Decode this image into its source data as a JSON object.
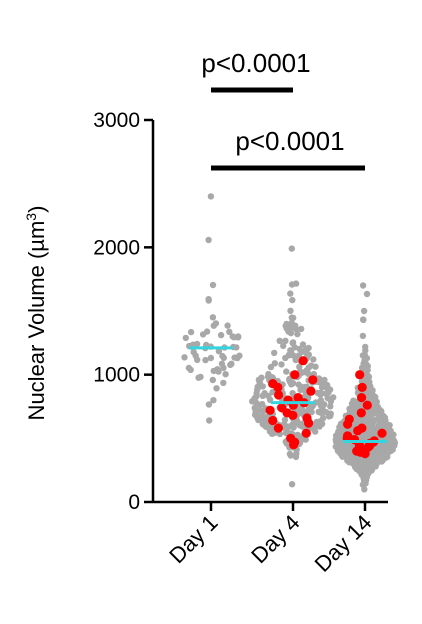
{
  "chart_data": {
    "type": "scatter",
    "subtype": "swarm-dot-plot",
    "title": "",
    "xlabel": "",
    "ylabel": "Nuclear Volume (µm",
    "ylabel_superscript": "3",
    "ylabel_close": ")",
    "ylim": [
      0,
      3000
    ],
    "yticks": [
      0,
      1000,
      2000,
      3000
    ],
    "ytick_labels": [
      "0",
      "1000",
      "2000",
      "3000"
    ],
    "grid": false,
    "categories": [
      "Day 1",
      "Day 4",
      "Day 14"
    ],
    "series": [
      {
        "category": "Day 1",
        "n_points": 60,
        "mean": 1210,
        "range": [
          640,
          2400
        ],
        "highlighted_values": []
      },
      {
        "category": "Day 4",
        "n_points": 320,
        "mean": 780,
        "range": [
          140,
          1990
        ],
        "highlighted_values": [
          1110,
          1000,
          960,
          930,
          900,
          870,
          840,
          820,
          800,
          780,
          760,
          740,
          720,
          700,
          680,
          660,
          640,
          620,
          580,
          540,
          500,
          470,
          450
        ]
      },
      {
        "category": "Day 14",
        "n_points": 900,
        "mean": 475,
        "range": [
          100,
          1700
        ],
        "highlighted_values": [
          1000,
          900,
          820,
          760,
          700,
          650,
          610,
          580,
          560,
          540,
          520,
          510,
          500,
          490,
          480,
          470,
          460,
          450,
          440,
          430,
          420,
          410,
          400,
          390,
          380
        ]
      }
    ],
    "colors": {
      "points": "#a8a8a8",
      "highlight": "#ff0000",
      "mean_line": "#33d6e0",
      "axis": "#000000"
    },
    "annotations": [
      {
        "text": "p<0.0001",
        "from": "Day 1",
        "to": "Day 4"
      },
      {
        "text": "p<0.0001",
        "from": "Day 1",
        "to": "Day 14"
      }
    ]
  }
}
